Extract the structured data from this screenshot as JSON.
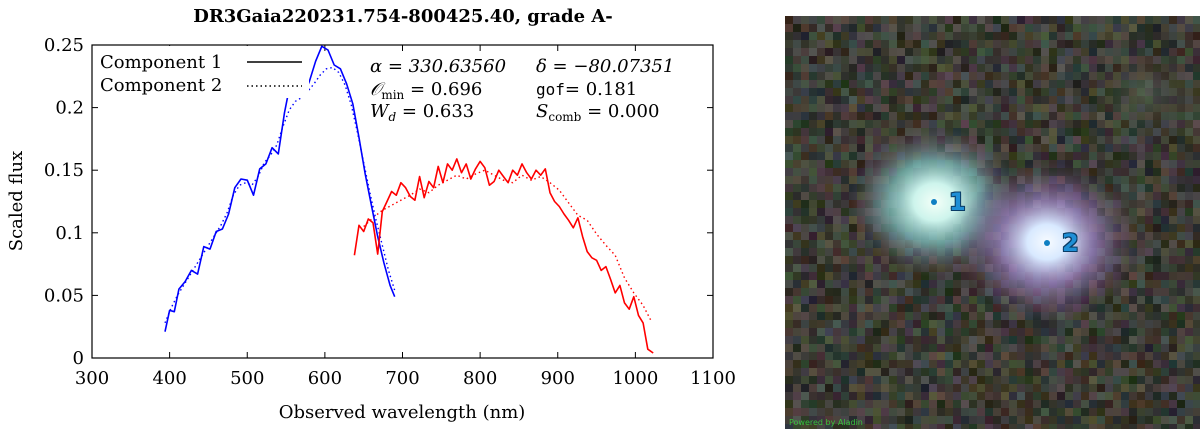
{
  "chart_data": {
    "type": "line",
    "title": "DR3Gaia220231.754-800425.40, grade A-",
    "xlabel": "Observed wavelength (nm)",
    "ylabel": "Scaled flux",
    "xlim": [
      300,
      1100
    ],
    "ylim": [
      0,
      0.25
    ],
    "xticks": [
      300,
      400,
      500,
      600,
      700,
      800,
      900,
      1000,
      1100
    ],
    "yticks": [
      0,
      0.05,
      0.1,
      0.15,
      0.2,
      0.25
    ],
    "xtick_labels": [
      "300",
      "400",
      "500",
      "600",
      "700",
      "800",
      "900",
      "1000",
      "1100"
    ],
    "ytick_labels": [
      "0",
      "0.05",
      "0.1",
      "0.15",
      "0.2",
      "0.25"
    ],
    "legend_position": "top-left",
    "legend": [
      {
        "label": "Component 1",
        "style": "solid"
      },
      {
        "label": "Component 2",
        "style": "dotted"
      }
    ],
    "annotations": {
      "alpha": "α = 330.63560",
      "delta": "δ = −80.07351",
      "omin_symbol": "𝒪",
      "omin_sub": "min",
      "omin_value": " = 0.696",
      "gof_key": "gof",
      "gof_value": "= 0.181",
      "wd_symbol": "W",
      "wd_sub": "d",
      "wd_value": " = 0.633",
      "scomb_symbol": "S",
      "scomb_sub": "comb",
      "scomb_value": " = 0.000"
    },
    "colors": {
      "bp": "#0000ff",
      "rp": "#ff0000"
    },
    "series": [
      {
        "component": 1,
        "band": "BP",
        "color": "#0000ff",
        "dash": "solid",
        "x": [
          394,
          400,
          406,
          412,
          420,
          428,
          436,
          444,
          452,
          460,
          468,
          476,
          484,
          492,
          500,
          508,
          516,
          524,
          532,
          540,
          548,
          556,
          564,
          572,
          580,
          588,
          596,
          604,
          612,
          620,
          628,
          636,
          644,
          652,
          660,
          668,
          676,
          684,
          690
        ],
        "y": [
          0.021,
          0.038,
          0.037,
          0.055,
          0.061,
          0.07,
          0.067,
          0.089,
          0.087,
          0.101,
          0.103,
          0.115,
          0.136,
          0.143,
          0.142,
          0.13,
          0.151,
          0.155,
          0.168,
          0.163,
          0.196,
          0.221,
          0.212,
          0.209,
          0.221,
          0.237,
          0.249,
          0.246,
          0.234,
          0.231,
          0.219,
          0.203,
          0.176,
          0.147,
          0.122,
          0.097,
          0.076,
          0.058,
          0.049
        ]
      },
      {
        "component": 1,
        "band": "RP",
        "color": "#ff0000",
        "dash": "solid",
        "x": [
          638,
          644,
          650,
          656,
          662,
          668,
          674,
          680,
          686,
          692,
          698,
          704,
          710,
          716,
          722,
          728,
          734,
          740,
          746,
          752,
          758,
          764,
          770,
          776,
          782,
          788,
          794,
          800,
          806,
          812,
          818,
          824,
          830,
          836,
          842,
          848,
          854,
          860,
          866,
          872,
          878,
          884,
          890,
          896,
          902,
          908,
          914,
          920,
          926,
          932,
          938,
          944,
          950,
          956,
          962,
          968,
          974,
          980,
          986,
          992,
          998,
          1004,
          1010,
          1016,
          1023
        ],
        "y": [
          0.082,
          0.106,
          0.101,
          0.111,
          0.108,
          0.083,
          0.117,
          0.125,
          0.133,
          0.13,
          0.14,
          0.136,
          0.129,
          0.126,
          0.145,
          0.128,
          0.141,
          0.136,
          0.153,
          0.14,
          0.155,
          0.15,
          0.159,
          0.148,
          0.155,
          0.143,
          0.151,
          0.157,
          0.152,
          0.138,
          0.141,
          0.15,
          0.145,
          0.14,
          0.15,
          0.146,
          0.155,
          0.148,
          0.143,
          0.15,
          0.146,
          0.151,
          0.132,
          0.125,
          0.121,
          0.115,
          0.11,
          0.104,
          0.112,
          0.097,
          0.085,
          0.08,
          0.078,
          0.07,
          0.073,
          0.063,
          0.052,
          0.058,
          0.044,
          0.039,
          0.049,
          0.034,
          0.028,
          0.007,
          0.004
        ]
      },
      {
        "component": 2,
        "band": "BP",
        "color": "#0000ff",
        "dash": "dotted",
        "x": [
          394,
          402,
          410,
          418,
          426,
          434,
          442,
          450,
          458,
          466,
          474,
          482,
          490,
          498,
          506,
          514,
          522,
          530,
          538,
          546,
          554,
          562,
          570,
          578,
          586,
          594,
          602,
          610,
          618,
          626,
          634,
          642,
          650,
          658,
          666,
          674,
          682,
          690
        ],
        "y": [
          0.028,
          0.04,
          0.05,
          0.058,
          0.066,
          0.074,
          0.082,
          0.09,
          0.098,
          0.106,
          0.116,
          0.13,
          0.138,
          0.14,
          0.138,
          0.145,
          0.156,
          0.162,
          0.17,
          0.185,
          0.198,
          0.205,
          0.208,
          0.213,
          0.219,
          0.226,
          0.231,
          0.232,
          0.228,
          0.218,
          0.202,
          0.18,
          0.156,
          0.132,
          0.11,
          0.09,
          0.07,
          0.054
        ]
      },
      {
        "component": 2,
        "band": "RP",
        "color": "#ff0000",
        "dash": "dotted",
        "x": [
          650,
          662,
          674,
          686,
          698,
          710,
          722,
          734,
          746,
          758,
          770,
          782,
          794,
          806,
          818,
          830,
          842,
          854,
          866,
          878,
          890,
          902,
          914,
          926,
          938,
          950,
          962,
          974,
          986,
          998,
          1010,
          1020
        ],
        "y": [
          0.105,
          0.112,
          0.118,
          0.122,
          0.126,
          0.13,
          0.135,
          0.132,
          0.138,
          0.142,
          0.146,
          0.143,
          0.147,
          0.15,
          0.146,
          0.142,
          0.14,
          0.146,
          0.142,
          0.145,
          0.14,
          0.134,
          0.124,
          0.114,
          0.11,
          0.099,
          0.09,
          0.082,
          0.064,
          0.052,
          0.042,
          0.03
        ]
      }
    ]
  },
  "sky": {
    "credit": "Powered by Aladin",
    "markers": [
      {
        "label": "1",
        "data_name": "source-marker-1"
      },
      {
        "label": "2",
        "data_name": "source-marker-2"
      }
    ]
  }
}
